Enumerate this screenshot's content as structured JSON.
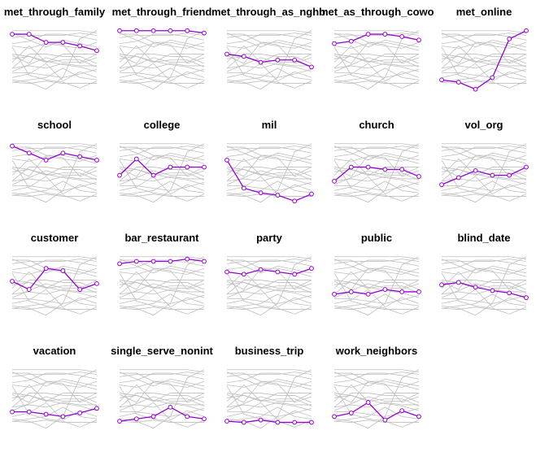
{
  "chart_data": {
    "type": "line",
    "layout": "small-multiples",
    "x": [
      1,
      2,
      3,
      4,
      5,
      6
    ],
    "highlight_color": "#9400d3",
    "background_color": "#bebebe",
    "axes_shown": false,
    "ylim": [
      0,
      1
    ],
    "panels": [
      {
        "title": "met_through_family",
        "values": [
          0.86,
          0.86,
          0.72,
          0.72,
          0.66,
          0.58
        ]
      },
      {
        "title": "met_through_friend",
        "values": [
          0.92,
          0.92,
          0.92,
          0.92,
          0.92,
          0.88
        ]
      },
      {
        "title": "met_through_as_nghbrs",
        "values": [
          0.52,
          0.48,
          0.38,
          0.42,
          0.42,
          0.3
        ]
      },
      {
        "title": "met_as_through_cowork",
        "values": [
          0.7,
          0.74,
          0.86,
          0.86,
          0.82,
          0.76
        ]
      },
      {
        "title": "met_online",
        "values": [
          0.08,
          0.04,
          -0.08,
          0.12,
          0.78,
          0.92
        ]
      },
      {
        "title": "school",
        "values": [
          0.88,
          0.76,
          0.64,
          0.76,
          0.7,
          0.64
        ]
      },
      {
        "title": "college",
        "values": [
          0.38,
          0.66,
          0.38,
          0.52,
          0.52,
          0.52
        ]
      },
      {
        "title": "mil",
        "values": [
          0.64,
          0.16,
          0.08,
          0.04,
          -0.06,
          0.06
        ]
      },
      {
        "title": "church",
        "values": [
          0.28,
          0.52,
          0.52,
          0.48,
          0.48,
          0.36
        ]
      },
      {
        "title": "vol_org",
        "values": [
          0.22,
          0.34,
          0.46,
          0.38,
          0.38,
          0.52
        ]
      },
      {
        "title": "customer",
        "values": [
          0.5,
          0.36,
          0.72,
          0.68,
          0.36,
          0.46
        ]
      },
      {
        "title": "bar_restaurant",
        "values": [
          0.8,
          0.84,
          0.84,
          0.84,
          0.88,
          0.84
        ]
      },
      {
        "title": "party",
        "values": [
          0.66,
          0.62,
          0.7,
          0.66,
          0.62,
          0.72
        ]
      },
      {
        "title": "public",
        "values": [
          0.28,
          0.32,
          0.28,
          0.36,
          0.32,
          0.32
        ]
      },
      {
        "title": "blind_date",
        "values": [
          0.44,
          0.48,
          0.4,
          0.34,
          0.3,
          0.22
        ]
      },
      {
        "title": "vacation",
        "values": [
          0.2,
          0.2,
          0.16,
          0.12,
          0.18,
          0.26
        ]
      },
      {
        "title": "single_serve_nonint",
        "values": [
          0.04,
          0.08,
          0.12,
          0.28,
          0.12,
          0.08
        ]
      },
      {
        "title": "business_trip",
        "values": [
          0.04,
          0.02,
          0.06,
          0.02,
          0.02,
          0.02
        ]
      },
      {
        "title": "work_neighbors",
        "values": [
          0.12,
          0.18,
          0.36,
          0.06,
          0.22,
          0.12
        ]
      }
    ]
  }
}
